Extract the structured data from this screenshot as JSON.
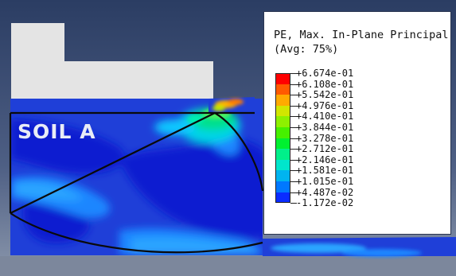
{
  "viewport": {
    "region_label": "SOIL A",
    "colors": {
      "background_dark": "#2b3d63",
      "background_light": "#8b97ac",
      "footing": "#e4e4e4",
      "soil_base": "#1f3fd8",
      "deep_blue": "#0c1ed0"
    }
  },
  "legend": {
    "title_line1": "PE, Max. In-Plane Principal",
    "title_line2": "(Avg: 75%)",
    "labels": [
      "+6.674e-01",
      "+6.108e-01",
      "+5.542e-01",
      "+4.976e-01",
      "+4.410e-01",
      "+3.844e-01",
      "+3.278e-01",
      "+2.712e-01",
      "+2.146e-01",
      "+1.581e-01",
      "+1.015e-01",
      "+4.487e-02",
      "-1.172e-02"
    ],
    "swatch_colors": [
      "#ff0000",
      "#ff5a00",
      "#ffaa00",
      "#d2e600",
      "#8ef000",
      "#46f000",
      "#00f030",
      "#00f08a",
      "#00e6cc",
      "#00b4f0",
      "#0078ff",
      "#0a2cff"
    ]
  }
}
